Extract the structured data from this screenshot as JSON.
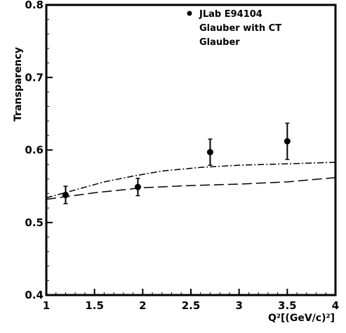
{
  "chart_data": {
    "type": "scatter",
    "title": "",
    "xlabel": "Q²[(GeV/c)²]",
    "ylabel": "Transparency",
    "xlim": [
      1,
      4
    ],
    "ylim": [
      0.4,
      0.8
    ],
    "xticks": [
      1,
      1.5,
      2,
      2.5,
      3,
      3.5,
      4
    ],
    "xtick_labels": [
      "1",
      "1.5",
      "2",
      "2.5",
      "3",
      "3.5",
      "4"
    ],
    "yticks": [
      0.4,
      0.5,
      0.6,
      0.7,
      0.8
    ],
    "ytick_labels": [
      "0.4",
      "0.5",
      "0.6",
      "0.7",
      "0.8"
    ],
    "legend_position": "top-right",
    "legend": [
      "JLab E94104",
      "Glauber with CT",
      "Glauber"
    ],
    "series": [
      {
        "name": "JLab E94104",
        "marker": "circle",
        "x": [
          1.2,
          1.95,
          2.7,
          3.5
        ],
        "y": [
          0.538,
          0.549,
          0.597,
          0.612
        ],
        "yerr": [
          0.012,
          0.012,
          0.018,
          0.025
        ]
      },
      {
        "name": "Glauber with CT",
        "line": "dash-dot",
        "x": [
          1.0,
          1.3,
          1.6,
          1.9,
          2.2,
          2.6,
          3.0,
          3.5,
          4.0
        ],
        "y": [
          0.534,
          0.545,
          0.556,
          0.564,
          0.571,
          0.576,
          0.579,
          0.581,
          0.583
        ]
      },
      {
        "name": "Glauber",
        "line": "dashed",
        "x": [
          1.0,
          1.5,
          2.0,
          2.5,
          3.0,
          3.5,
          4.0
        ],
        "y": [
          0.532,
          0.541,
          0.548,
          0.551,
          0.553,
          0.556,
          0.562
        ]
      }
    ],
    "grid": false
  }
}
